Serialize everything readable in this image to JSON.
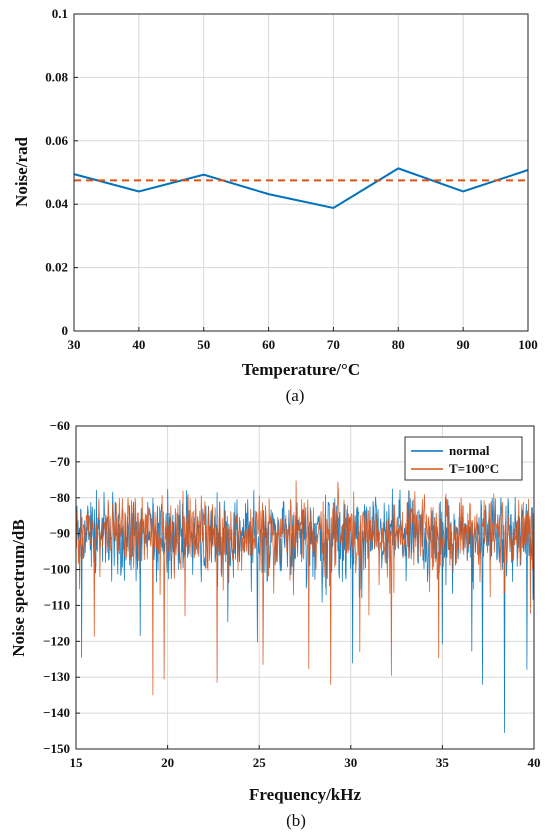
{
  "chart_data": [
    {
      "type": "line",
      "caption": "(a)",
      "xlabel": "Temperature/°C",
      "ylabel": "Noise/rad",
      "xlim": [
        30,
        100
      ],
      "ylim": [
        0,
        0.1
      ],
      "xticks": [
        30,
        40,
        50,
        60,
        70,
        80,
        90,
        100
      ],
      "yticks": [
        0,
        0.02,
        0.04,
        0.06,
        0.08,
        0.1
      ],
      "ytick_labels": [
        "0",
        "0.02",
        "0.04",
        "0.06",
        "0.08",
        "0.1"
      ],
      "grid": true,
      "x": [
        30,
        40,
        50,
        60,
        70,
        80,
        90,
        100
      ],
      "series": [
        {
          "values": [
            0.0495,
            0.044,
            0.0493,
            0.0432,
            0.0388,
            0.0513,
            0.044,
            0.0508
          ],
          "color": "#0072bd",
          "style": "solid"
        },
        {
          "values": [
            0.0475,
            0.0475,
            0.0475,
            0.0475,
            0.0475,
            0.0475,
            0.0475,
            0.0475
          ],
          "color": "#d95319",
          "style": "dashed"
        }
      ]
    },
    {
      "type": "line",
      "caption": "(b)",
      "xlabel": "Frequency/kHz",
      "ylabel": "Noise spectrum/dB",
      "xlim": [
        15,
        40
      ],
      "ylim": [
        -150,
        -60
      ],
      "xticks": [
        15,
        20,
        25,
        30,
        35,
        40
      ],
      "yticks": [
        -150,
        -140,
        -130,
        -120,
        -110,
        -100,
        -90,
        -80,
        -70,
        -60
      ],
      "ytick_labels": [
        "−150",
        "−140",
        "−130",
        "−120",
        "−110",
        "−100",
        "−90",
        "−80",
        "−70",
        "−60"
      ],
      "grid": true,
      "legend_position": "top-right",
      "series": [
        {
          "name": "normal",
          "color": "#0072bd",
          "baseline": -90,
          "spread": 5,
          "min": -145.5,
          "max": -77.5,
          "x": [
            15.3,
            16.1,
            17.0,
            18.5,
            20.0,
            24.9,
            30.1,
            32.7,
            35.0,
            36.6,
            37.2,
            38.4,
            39.6
          ],
          "values": [
            -124.5,
            -77.8,
            -78.3,
            -118.5,
            -77.6,
            -120.3,
            -126.1,
            -77.8,
            -120.8,
            -122.8,
            -132.1,
            -145.5,
            -127.9
          ]
        },
        {
          "name": "T=100°C",
          "color": "#d95319",
          "baseline": -89,
          "spread": 4.5,
          "min": -135,
          "max": -75,
          "x": [
            16.0,
            19.2,
            19.8,
            22.7,
            25.2,
            27.0,
            27.7,
            28.9,
            29.3,
            30.5,
            32.2,
            34.8,
            39.8
          ],
          "values": [
            -118.7,
            -135.0,
            -130.6,
            -131.5,
            -126.5,
            -75.2,
            -127.7,
            -132.1,
            -75.5,
            -123.0,
            -129.6,
            -124.7,
            -112.3
          ]
        }
      ]
    }
  ]
}
